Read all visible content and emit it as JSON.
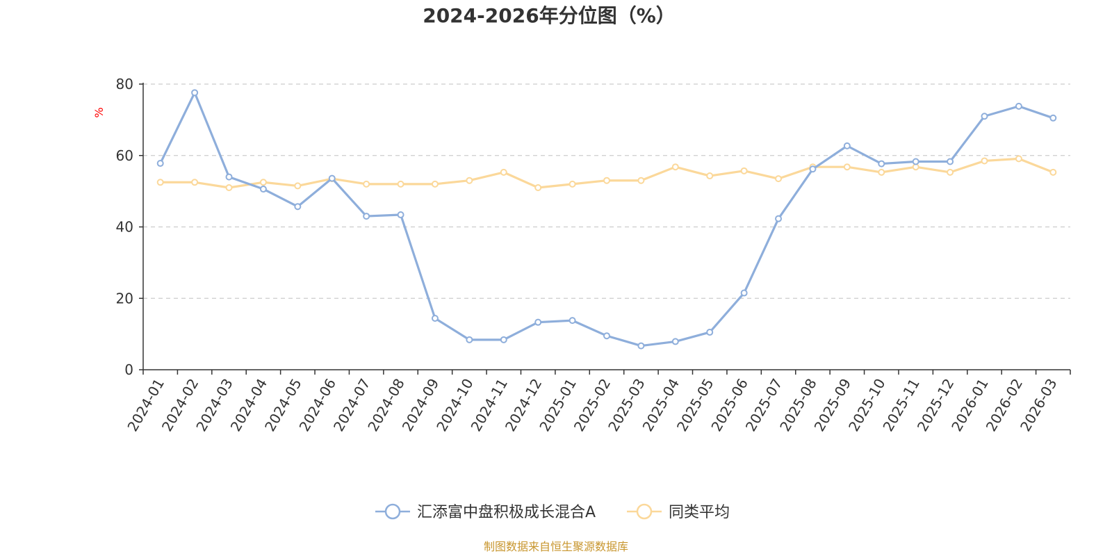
{
  "chart_data": {
    "type": "line",
    "title": "2024-2026年分位图（%）",
    "ylabel": "%",
    "xlabel": "",
    "ylim": [
      0,
      80
    ],
    "yticks": [
      0,
      20,
      40,
      60,
      80
    ],
    "grid": true,
    "legend_position": "bottom-center",
    "categories": [
      "2024-01",
      "2024-02",
      "2024-03",
      "2024-04",
      "2024-05",
      "2024-06",
      "2024-07",
      "2024-08",
      "2024-09",
      "2024-10",
      "2024-11",
      "2024-12",
      "2025-01",
      "2025-02",
      "2025-03",
      "2025-04",
      "2025-05",
      "2025-06",
      "2025-07",
      "2025-08",
      "2025-09",
      "2025-10",
      "2025-11",
      "2025-12",
      "2026-01",
      "2026-02",
      "2026-03"
    ],
    "series": [
      {
        "name": "汇添富中盘积极成长混合A",
        "color": "#8eaedb",
        "values": [
          57.8,
          77.6,
          54.0,
          50.6,
          45.7,
          53.6,
          43.0,
          43.4,
          14.4,
          8.4,
          8.4,
          13.3,
          13.8,
          9.5,
          6.7,
          7.9,
          10.5,
          21.5,
          42.3,
          56.2,
          62.7,
          57.7,
          58.3,
          58.3,
          71.0,
          73.8,
          70.5
        ]
      },
      {
        "name": "同类平均",
        "color": "#fbd89a",
        "values": [
          52.5,
          52.5,
          51.0,
          52.5,
          51.5,
          53.5,
          52.0,
          52.0,
          52.0,
          53.0,
          55.3,
          51.0,
          52.0,
          53.0,
          53.0,
          56.8,
          54.3,
          55.7,
          53.5,
          56.8,
          56.8,
          55.3,
          56.8,
          55.3,
          58.5,
          59.1,
          55.3
        ]
      }
    ],
    "source_note": "制图数据来自恒生聚源数据库"
  }
}
